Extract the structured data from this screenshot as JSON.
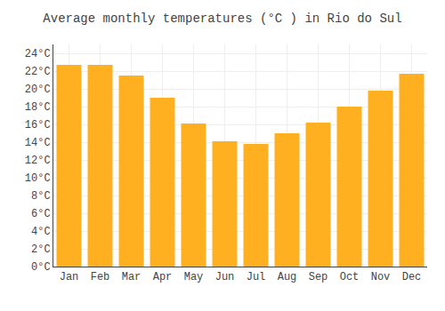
{
  "chart_data": {
    "type": "bar",
    "title": "Average monthly temperatures (°C ) in Rio do Sul",
    "categories": [
      "Jan",
      "Feb",
      "Mar",
      "Apr",
      "May",
      "Jun",
      "Jul",
      "Aug",
      "Sep",
      "Oct",
      "Nov",
      "Dec"
    ],
    "values": [
      22.7,
      22.7,
      21.5,
      19.0,
      16.1,
      14.1,
      13.8,
      15.0,
      16.2,
      18.0,
      19.8,
      21.7
    ],
    "color": "#FFB020",
    "ylim": [
      0,
      25
    ],
    "yticks": [
      {
        "value": 0,
        "label": "0°C"
      },
      {
        "value": 2,
        "label": "2°C"
      },
      {
        "value": 4,
        "label": "4°C"
      },
      {
        "value": 6,
        "label": "6°C"
      },
      {
        "value": 8,
        "label": "8°C"
      },
      {
        "value": 10,
        "label": "10°C"
      },
      {
        "value": 12,
        "label": "12°C"
      },
      {
        "value": 14,
        "label": "14°C"
      },
      {
        "value": 16,
        "label": "16°C"
      },
      {
        "value": 18,
        "label": "18°C"
      },
      {
        "value": 20,
        "label": "20°C"
      },
      {
        "value": 22,
        "label": "22°C"
      },
      {
        "value": 24,
        "label": "24°C"
      }
    ],
    "grid": true
  }
}
